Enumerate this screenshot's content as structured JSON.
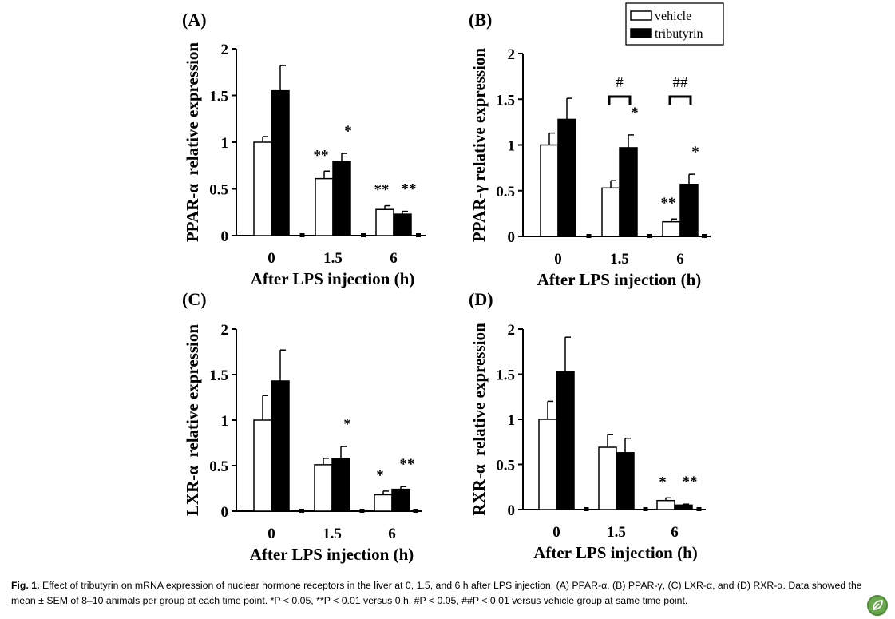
{
  "legend": {
    "items": [
      {
        "label": "vehicle",
        "fill": "#ffffff"
      },
      {
        "label": "tributyrin",
        "fill": "#000000"
      }
    ]
  },
  "caption": {
    "label": "Fig. 1.",
    "text": "Effect of tributyrin on mRNA expression of nuclear hormone receptors in the liver at 0, 1.5, and 6 h after LPS injection. (A) PPAR-α, (B) PPAR-γ, (C) LXR-α, and (D) RXR-α. Data showed the mean ± SEM of 8–10 animals per group at each time point. *P < 0.05, **P < 0.01 versus 0 h, #P < 0.05, ##P < 0.01 versus vehicle group at same time point."
  },
  "chart_data": [
    {
      "panel": "(A)",
      "type": "bar",
      "ylabel": "PPAR-α  relative expression",
      "xlabel": "After LPS injection (h)",
      "categories": [
        "0",
        "1.5",
        "6"
      ],
      "ylim": [
        0,
        2
      ],
      "yticks": [
        "0",
        "0.5",
        "1",
        "1.5",
        "2"
      ],
      "series": [
        {
          "name": "vehicle",
          "values": [
            1.0,
            0.61,
            0.28
          ],
          "errors": [
            0.06,
            0.08,
            0.04
          ]
        },
        {
          "name": "tributyrin",
          "values": [
            1.55,
            0.79,
            0.23
          ],
          "errors": [
            0.27,
            0.09,
            0.03
          ]
        }
      ],
      "annotations": [
        {
          "text": "**",
          "category": 1,
          "series": 0
        },
        {
          "text": "*",
          "category": 1,
          "series": 1
        },
        {
          "text": "**",
          "category": 2,
          "series": 0
        },
        {
          "text": "**",
          "category": 2,
          "series": 1
        }
      ],
      "brackets": []
    },
    {
      "panel": "(B)",
      "type": "bar",
      "ylabel": "PPAR-γ relative expression",
      "xlabel": "After LPS injection (h)",
      "categories": [
        "0",
        "1.5",
        "6"
      ],
      "ylim": [
        0,
        2
      ],
      "yticks": [
        "0",
        "0.5",
        "1",
        "1.5",
        "2"
      ],
      "series": [
        {
          "name": "vehicle",
          "values": [
            1.0,
            0.53,
            0.16
          ],
          "errors": [
            0.13,
            0.08,
            0.03
          ]
        },
        {
          "name": "tributyrin",
          "values": [
            1.28,
            0.97,
            0.57
          ],
          "errors": [
            0.23,
            0.14,
            0.11
          ]
        }
      ],
      "annotations": [
        {
          "text": "*",
          "category": 1,
          "series": 1
        },
        {
          "text": "**",
          "category": 2,
          "series": 0
        },
        {
          "text": "*",
          "category": 2,
          "series": 1
        }
      ],
      "brackets": [
        {
          "text": "#",
          "category": 1
        },
        {
          "text": "##",
          "category": 2
        }
      ]
    },
    {
      "panel": "(C)",
      "type": "bar",
      "ylabel": "LXR-α  relative expression",
      "xlabel": "After LPS injection (h)",
      "categories": [
        "0",
        "1.5",
        "6"
      ],
      "ylim": [
        0,
        2
      ],
      "yticks": [
        "0",
        "0.5",
        "1",
        "1.5",
        "2"
      ],
      "series": [
        {
          "name": "vehicle",
          "values": [
            1.0,
            0.51,
            0.18
          ],
          "errors": [
            0.27,
            0.07,
            0.04
          ]
        },
        {
          "name": "tributyrin",
          "values": [
            1.43,
            0.58,
            0.24
          ],
          "errors": [
            0.34,
            0.13,
            0.03
          ]
        }
      ],
      "annotations": [
        {
          "text": "*",
          "category": 1,
          "series": 1
        },
        {
          "text": "*",
          "category": 2,
          "series": 0
        },
        {
          "text": "**",
          "category": 2,
          "series": 1
        }
      ],
      "brackets": []
    },
    {
      "panel": "(D)",
      "type": "bar",
      "ylabel": "RXR-α  relative expression",
      "xlabel": "After LPS injection (h)",
      "categories": [
        "0",
        "1.5",
        "6"
      ],
      "ylim": [
        0,
        2
      ],
      "yticks": [
        "0",
        "0.5",
        "1",
        "1.5",
        "2"
      ],
      "series": [
        {
          "name": "vehicle",
          "values": [
            1.0,
            0.69,
            0.1
          ],
          "errors": [
            0.2,
            0.14,
            0.03
          ]
        },
        {
          "name": "tributyrin",
          "values": [
            1.53,
            0.63,
            0.05
          ],
          "errors": [
            0.38,
            0.16,
            0.01
          ]
        }
      ],
      "annotations": [
        {
          "text": "*",
          "category": 2,
          "series": 0
        },
        {
          "text": "**",
          "category": 2,
          "series": 1
        }
      ],
      "brackets": []
    }
  ]
}
